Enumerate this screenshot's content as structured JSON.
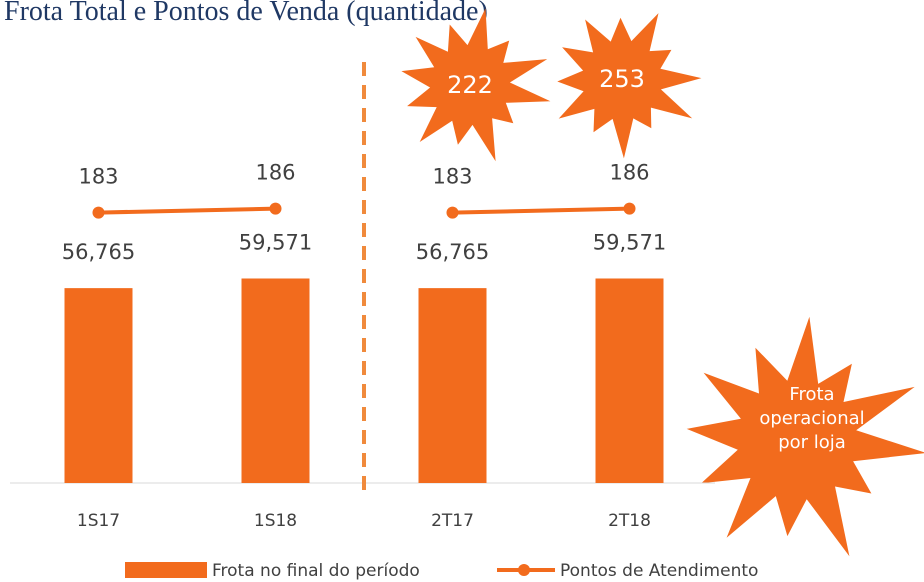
{
  "chart_data": {
    "type": "bar_line",
    "title": "Frota Total e Pontos de Venda (quantidade)",
    "categories": [
      "1S17",
      "1S18",
      "2T17",
      "2T18"
    ],
    "series": [
      {
        "name": "Frota no final do período",
        "color": "#f26b1d",
        "values": [
          56765,
          59571,
          56765,
          59571
        ],
        "value_labels": [
          "56,765",
          "59,571",
          "56,765",
          "59,571"
        ]
      },
      {
        "name": "Pontos de Atendimento",
        "color": "#f26b1d",
        "values": [
          183,
          186,
          183,
          186
        ],
        "axis": "y2"
      }
    ],
    "ylim": [
      0,
      97000
    ],
    "y2lim": [
      -20,
      230
    ],
    "divider_after": 1,
    "annotations": [
      "222",
      "253",
      "Frota operacional por loja"
    ]
  }
}
